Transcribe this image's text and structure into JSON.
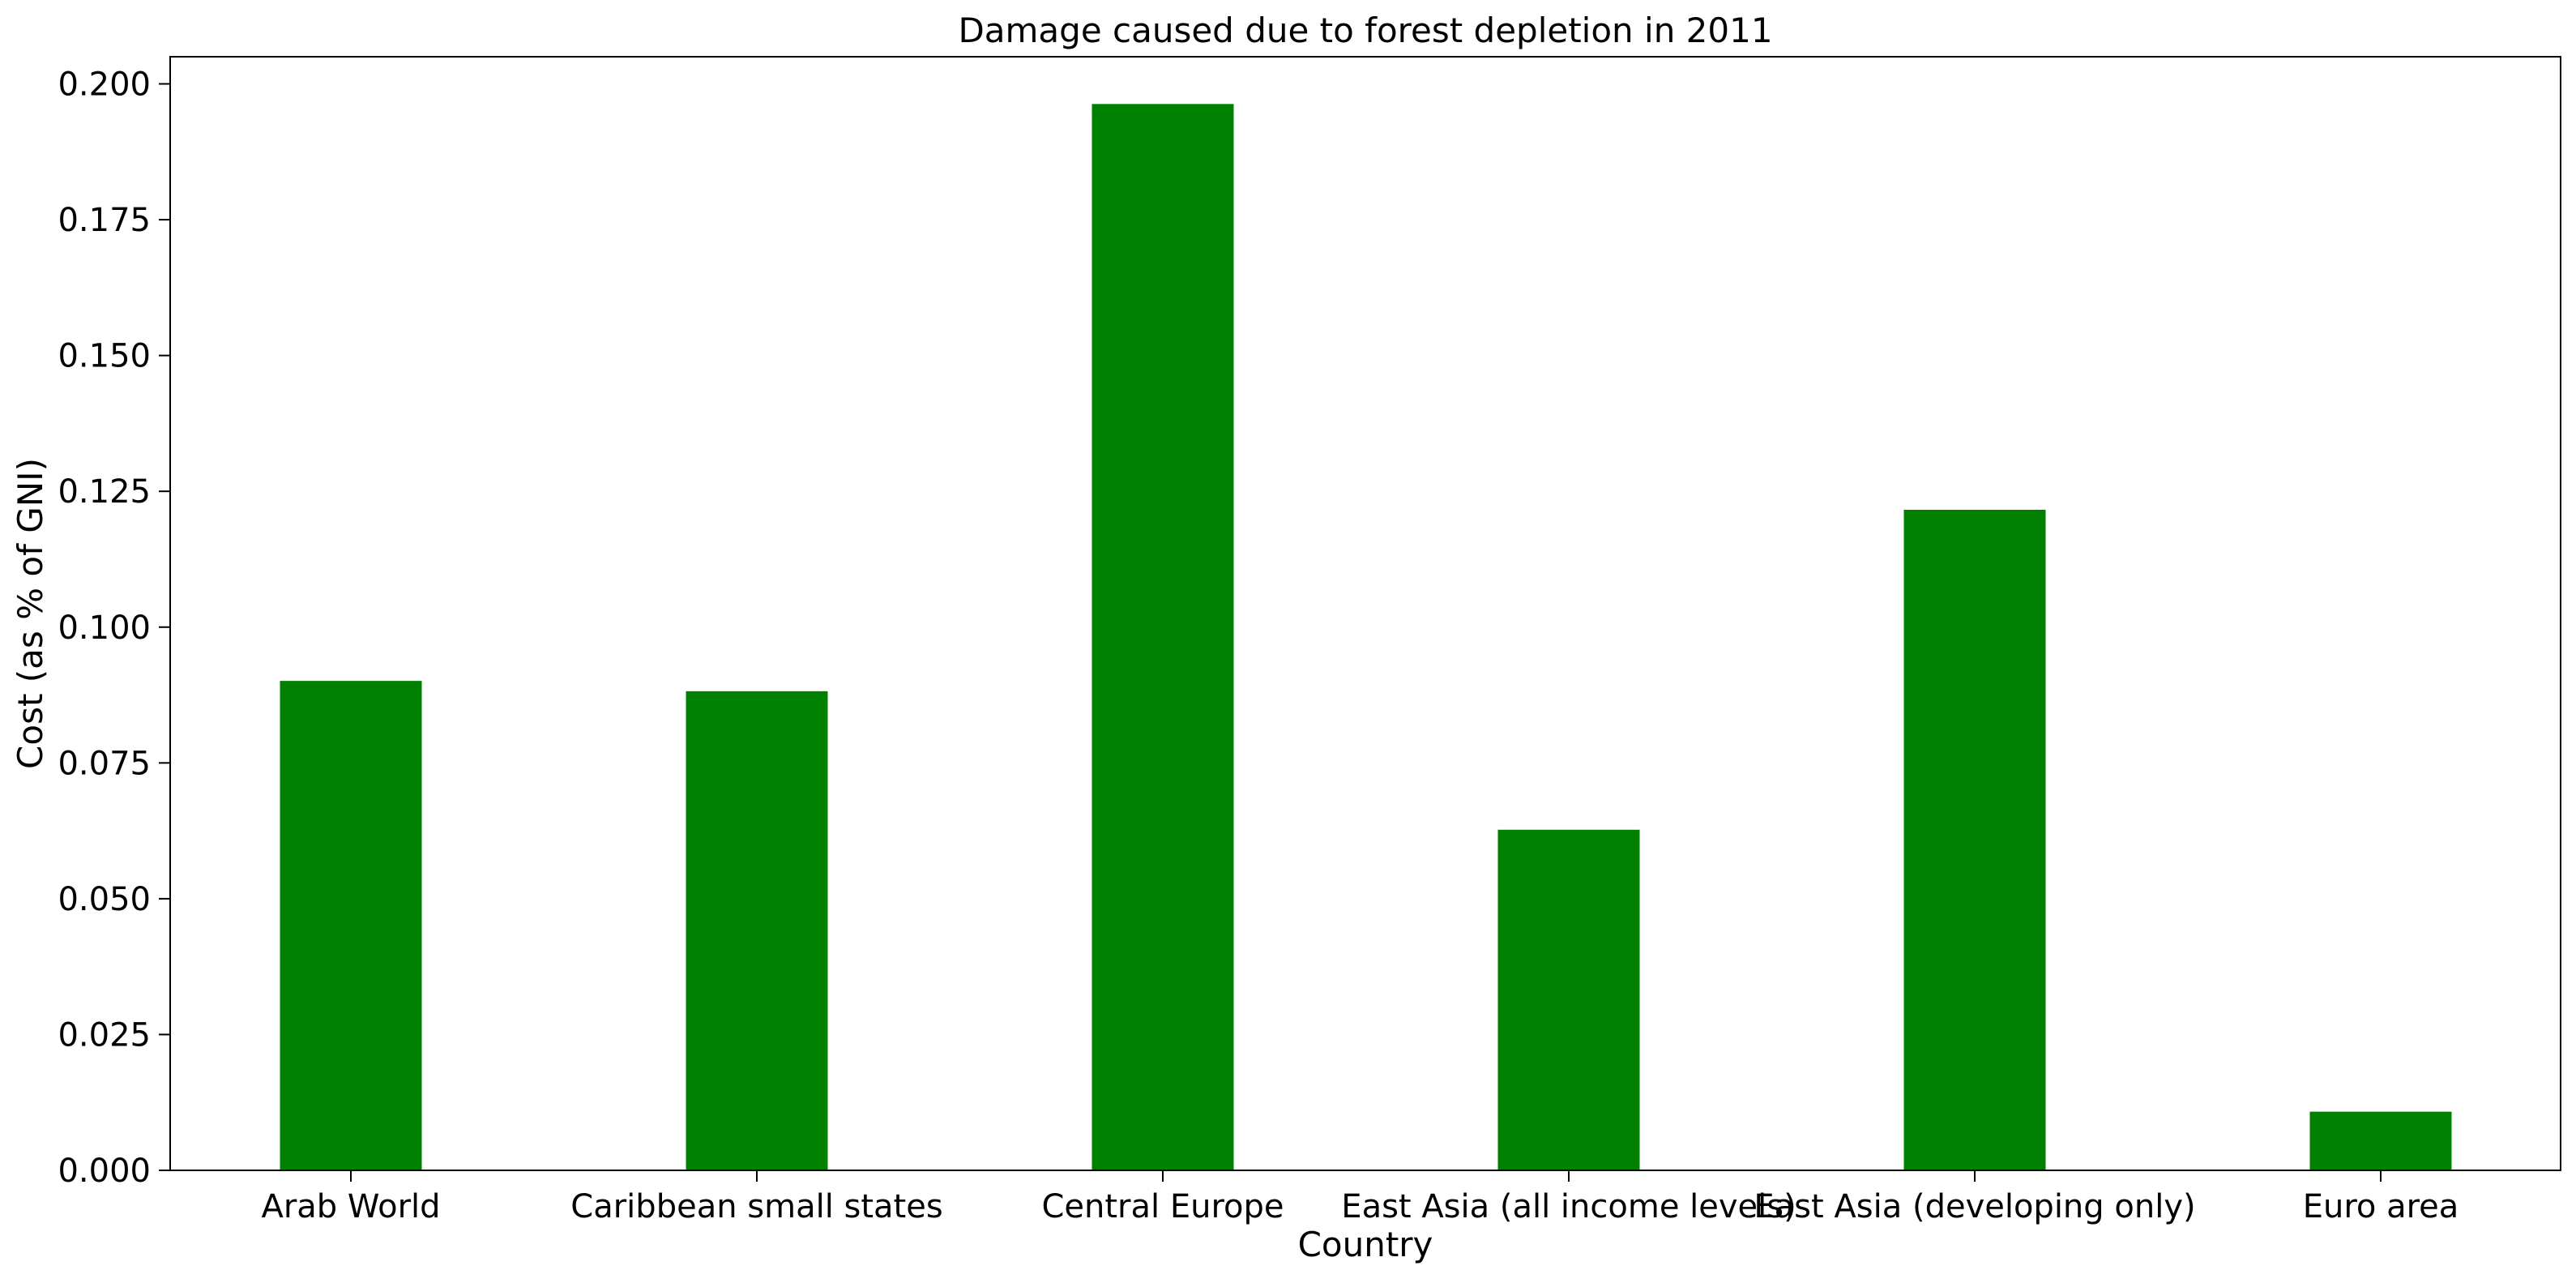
{
  "chart_data": {
    "type": "bar",
    "title": "Damage caused due to forest depletion in 2011",
    "xlabel": "Country",
    "ylabel": "Cost (as % of GNI)",
    "categories": [
      "Arab World",
      "Caribbean small states",
      "Central Europe",
      "East Asia (all income levels)",
      "East Asia (developing only)",
      "Euro area"
    ],
    "values": [
      0.0901,
      0.0882,
      0.1963,
      0.0627,
      0.1216,
      0.0108
    ],
    "ylim": [
      0,
      0.205
    ],
    "yticks": [
      "0.000",
      "0.025",
      "0.050",
      "0.075",
      "0.100",
      "0.125",
      "0.150",
      "0.175",
      "0.200"
    ],
    "bar_color": "#008000",
    "grid": false,
    "legend": "none"
  }
}
